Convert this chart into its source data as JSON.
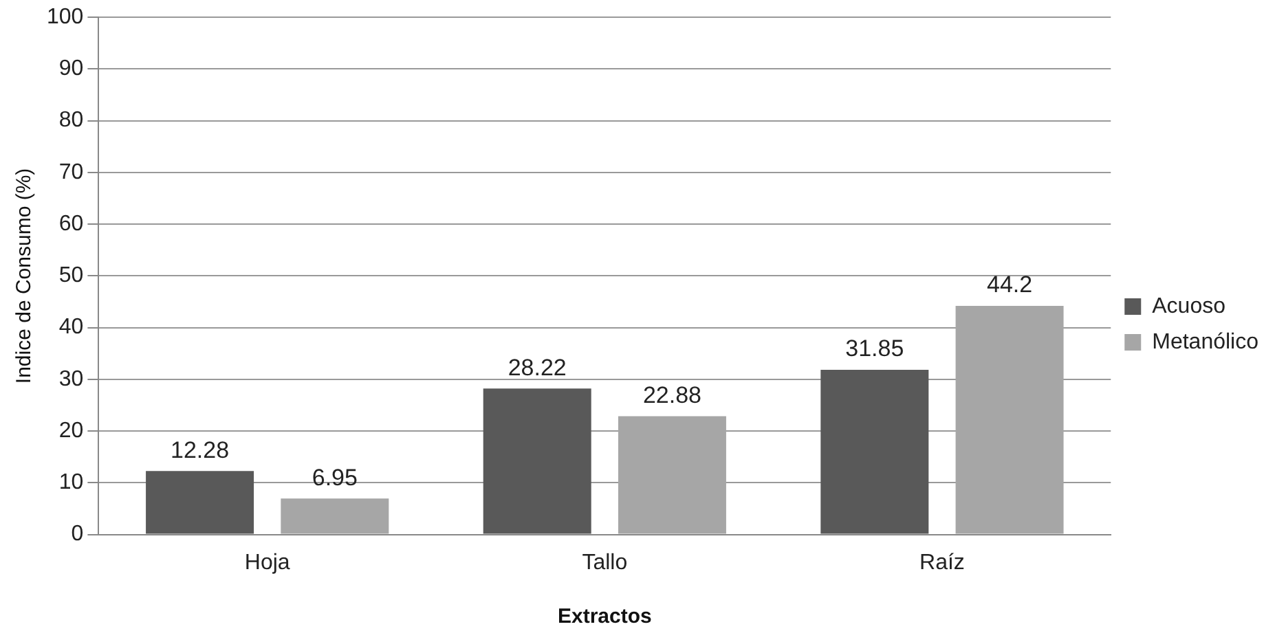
{
  "chart_data": {
    "type": "bar",
    "xlabel": "Extractos",
    "ylabel": "Indice de Consumo (%)",
    "categories": [
      "Hoja",
      "Tallo",
      "Raíz"
    ],
    "series": [
      {
        "name": "Acuoso",
        "color": "#595959",
        "values": [
          12.28,
          28.22,
          31.85
        ]
      },
      {
        "name": "Metanólico",
        "color": "#a6a6a6",
        "values": [
          6.95,
          22.88,
          44.2
        ]
      }
    ],
    "ylim": [
      0,
      100
    ],
    "yticks": [
      0,
      10,
      20,
      30,
      40,
      50,
      60,
      70,
      80,
      90,
      100
    ],
    "grid": "y",
    "legend": "right",
    "data_labels": true
  }
}
